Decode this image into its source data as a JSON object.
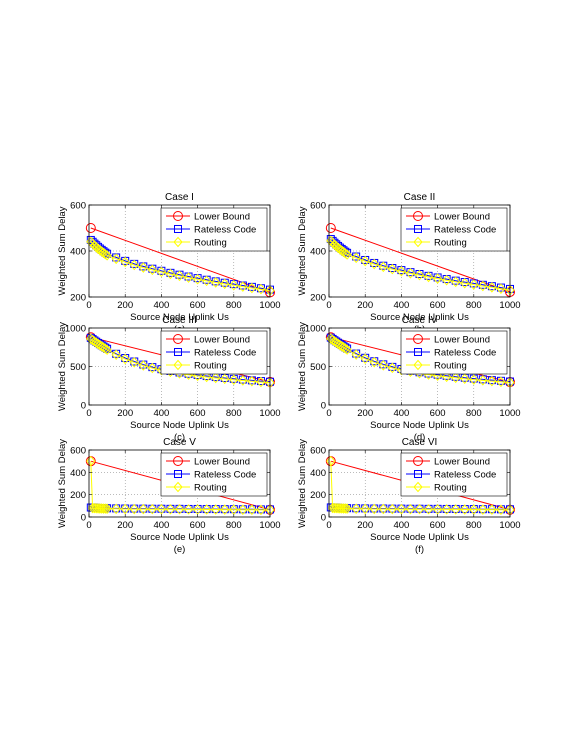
{
  "chart_data": [
    {
      "type": "line",
      "title": "Case I",
      "xlabel": "Source Node Uplink Us",
      "ylabel": "Weighted Sum Delay",
      "caption": "(a)",
      "xlim": [
        0,
        1000
      ],
      "ylim": [
        200,
        600
      ],
      "xticks": [
        0,
        200,
        400,
        600,
        800,
        1000
      ],
      "yticks": [
        200,
        400,
        600
      ],
      "grid": true,
      "legend_position": "top-right",
      "x": [
        10,
        20,
        30,
        40,
        50,
        60,
        70,
        80,
        90,
        100,
        150,
        200,
        250,
        300,
        350,
        400,
        450,
        500,
        550,
        600,
        650,
        700,
        750,
        800,
        850,
        900,
        950,
        1000
      ],
      "series": [
        {
          "name": "Lower Bound",
          "color": "#ff0000",
          "marker": "circle",
          "x": [
            10,
            1000
          ],
          "values": [
            500,
            220
          ]
        },
        {
          "name": "Rateless Code",
          "color": "#0000ff",
          "marker": "square",
          "values": [
            448,
            440,
            432,
            425,
            418,
            411,
            405,
            399,
            393,
            388,
            372,
            357,
            344,
            333,
            323,
            314,
            305,
            297,
            289,
            282,
            275,
            268,
            262,
            256,
            250,
            244,
            238,
            232
          ]
        },
        {
          "name": "Routing",
          "color": "#ffff00",
          "marker": "diamond",
          "values": [
            440,
            432,
            424,
            417,
            410,
            404,
            398,
            392,
            386,
            381,
            366,
            352,
            339,
            328,
            318,
            309,
            300,
            292,
            284,
            277,
            270,
            263,
            257,
            251,
            245,
            239,
            234,
            228
          ]
        }
      ]
    },
    {
      "type": "line",
      "title": "Case II",
      "xlabel": "Source Node Uplink Us",
      "ylabel": "Weighted Sum Delay",
      "caption": "(b)",
      "xlim": [
        0,
        1000
      ],
      "ylim": [
        200,
        600
      ],
      "xticks": [
        0,
        200,
        400,
        600,
        800,
        1000
      ],
      "yticks": [
        200,
        400,
        600
      ],
      "grid": true,
      "legend_position": "top-right",
      "x": [
        10,
        20,
        30,
        40,
        50,
        60,
        70,
        80,
        90,
        100,
        150,
        200,
        250,
        300,
        350,
        400,
        450,
        500,
        550,
        600,
        650,
        700,
        750,
        800,
        850,
        900,
        950,
        1000
      ],
      "series": [
        {
          "name": "Lower Bound",
          "color": "#ff0000",
          "marker": "circle",
          "x": [
            10,
            1000
          ],
          "values": [
            500,
            222
          ]
        },
        {
          "name": "Rateless Code",
          "color": "#0000ff",
          "marker": "square",
          "values": [
            452,
            444,
            436,
            429,
            422,
            415,
            409,
            403,
            397,
            392,
            376,
            361,
            348,
            336,
            326,
            317,
            308,
            300,
            292,
            285,
            278,
            271,
            265,
            259,
            253,
            247,
            241,
            235
          ]
        },
        {
          "name": "Routing",
          "color": "#ffff00",
          "marker": "diamond",
          "values": [
            444,
            436,
            428,
            421,
            414,
            408,
            402,
            396,
            390,
            385,
            370,
            356,
            343,
            331,
            321,
            312,
            303,
            295,
            287,
            280,
            273,
            266,
            260,
            254,
            248,
            242,
            236,
            230
          ]
        }
      ]
    },
    {
      "type": "line",
      "title": "Case III",
      "xlabel": "Source Node Uplink Us",
      "ylabel": "Weighted Sum Delay",
      "caption": "(c)",
      "xlim": [
        0,
        1000
      ],
      "ylim": [
        0,
        1000
      ],
      "xticks": [
        0,
        200,
        400,
        600,
        800,
        1000
      ],
      "yticks": [
        0,
        500,
        1000
      ],
      "grid": true,
      "legend_position": "top-right",
      "x": [
        10,
        20,
        30,
        40,
        50,
        60,
        70,
        80,
        90,
        100,
        150,
        200,
        250,
        300,
        350,
        400,
        450,
        500,
        550,
        600,
        650,
        700,
        750,
        800,
        850,
        900,
        950,
        1000
      ],
      "series": [
        {
          "name": "Lower Bound",
          "color": "#ff0000",
          "marker": "circle",
          "x": [
            10,
            1000
          ],
          "values": [
            880,
            300
          ]
        },
        {
          "name": "Rateless Code",
          "color": "#0000ff",
          "marker": "square",
          "values": [
            872,
            855,
            838,
            822,
            806,
            790,
            775,
            760,
            745,
            730,
            665,
            610,
            565,
            525,
            492,
            465,
            442,
            422,
            405,
            390,
            376,
            363,
            351,
            340,
            330,
            320,
            311,
            302
          ]
        },
        {
          "name": "Routing",
          "color": "#ffff00",
          "marker": "diamond",
          "values": [
            860,
            843,
            826,
            810,
            794,
            778,
            763,
            748,
            733,
            718,
            653,
            598,
            553,
            513,
            480,
            453,
            430,
            410,
            393,
            378,
            364,
            351,
            339,
            328,
            318,
            308,
            299,
            290
          ]
        }
      ]
    },
    {
      "type": "line",
      "title": "Case IV",
      "xlabel": "Source Node Uplink Us",
      "ylabel": "Weighted Sum Delay",
      "caption": "(d)",
      "xlim": [
        0,
        1000
      ],
      "ylim": [
        0,
        1000
      ],
      "xticks": [
        0,
        200,
        400,
        600,
        800,
        1000
      ],
      "yticks": [
        0,
        500,
        1000
      ],
      "grid": true,
      "legend_position": "top-right",
      "x": [
        10,
        20,
        30,
        40,
        50,
        60,
        70,
        80,
        90,
        100,
        150,
        200,
        250,
        300,
        350,
        400,
        450,
        500,
        550,
        600,
        650,
        700,
        750,
        800,
        850,
        900,
        950,
        1000
      ],
      "series": [
        {
          "name": "Lower Bound",
          "color": "#ff0000",
          "marker": "circle",
          "x": [
            10,
            1000
          ],
          "values": [
            880,
            298
          ]
        },
        {
          "name": "Rateless Code",
          "color": "#0000ff",
          "marker": "square",
          "values": [
            875,
            858,
            841,
            825,
            809,
            793,
            778,
            763,
            748,
            733,
            668,
            613,
            568,
            528,
            495,
            468,
            445,
            425,
            408,
            393,
            379,
            366,
            354,
            343,
            333,
            323,
            314,
            305
          ]
        },
        {
          "name": "Routing",
          "color": "#ffff00",
          "marker": "diamond",
          "values": [
            862,
            845,
            828,
            812,
            796,
            780,
            765,
            750,
            735,
            720,
            655,
            600,
            555,
            515,
            482,
            455,
            432,
            412,
            395,
            380,
            366,
            353,
            341,
            330,
            320,
            310,
            301,
            292
          ]
        }
      ]
    },
    {
      "type": "line",
      "title": "Case V",
      "xlabel": "Source Node Uplink Us",
      "ylabel": "Weighted Sum Delay",
      "caption": "(e)",
      "xlim": [
        0,
        1000
      ],
      "ylim": [
        0,
        600
      ],
      "xticks": [
        0,
        200,
        400,
        600,
        800,
        1000
      ],
      "yticks": [
        0,
        200,
        400,
        600
      ],
      "grid": true,
      "legend_position": "top-right",
      "x": [
        10,
        20,
        30,
        40,
        50,
        60,
        70,
        80,
        90,
        100,
        150,
        200,
        250,
        300,
        350,
        400,
        450,
        500,
        550,
        600,
        650,
        700,
        750,
        800,
        850,
        900,
        950,
        1000
      ],
      "series": [
        {
          "name": "Lower Bound",
          "color": "#ff0000",
          "marker": "circle",
          "x": [
            10,
            1000
          ],
          "values": [
            500,
            65
          ]
        },
        {
          "name": "Rateless Code",
          "color": "#0000ff",
          "marker": "square",
          "values": [
            85,
            84,
            83,
            82,
            81,
            80,
            80,
            79,
            79,
            78,
            77,
            76,
            75,
            75,
            74,
            74,
            73,
            73,
            72,
            72,
            71,
            71,
            70,
            70,
            69,
            69,
            68,
            68
          ]
        },
        {
          "name": "Routing",
          "color": "#ffff00",
          "marker": "diamond",
          "values": [
            500,
            80,
            79,
            78,
            77,
            76,
            76,
            75,
            75,
            74,
            73,
            72,
            71,
            71,
            70,
            70,
            69,
            69,
            68,
            68,
            67,
            67,
            66,
            66,
            65,
            65,
            64,
            64
          ]
        }
      ]
    },
    {
      "type": "line",
      "title": "Case VI",
      "xlabel": "Source Node Uplink Us",
      "ylabel": "Weighted Sum Delay",
      "caption": "(f)",
      "xlim": [
        0,
        1000
      ],
      "ylim": [
        0,
        600
      ],
      "xticks": [
        0,
        200,
        400,
        600,
        800,
        1000
      ],
      "yticks": [
        0,
        200,
        400,
        600
      ],
      "grid": true,
      "legend_position": "top-right",
      "x": [
        10,
        20,
        30,
        40,
        50,
        60,
        70,
        80,
        90,
        100,
        150,
        200,
        250,
        300,
        350,
        400,
        450,
        500,
        550,
        600,
        650,
        700,
        750,
        800,
        850,
        900,
        950,
        1000
      ],
      "series": [
        {
          "name": "Lower Bound",
          "color": "#ff0000",
          "marker": "circle",
          "x": [
            10,
            1000
          ],
          "values": [
            500,
            65
          ]
        },
        {
          "name": "Rateless Code",
          "color": "#0000ff",
          "marker": "square",
          "values": [
            86,
            85,
            84,
            83,
            82,
            81,
            81,
            80,
            80,
            79,
            78,
            77,
            76,
            76,
            75,
            75,
            74,
            74,
            73,
            73,
            72,
            72,
            71,
            71,
            70,
            70,
            69,
            69
          ]
        },
        {
          "name": "Routing",
          "color": "#ffff00",
          "marker": "diamond",
          "values": [
            500,
            81,
            80,
            79,
            78,
            77,
            77,
            76,
            76,
            75,
            74,
            73,
            72,
            72,
            71,
            71,
            70,
            70,
            69,
            69,
            68,
            68,
            67,
            67,
            66,
            66,
            65,
            65
          ]
        }
      ]
    }
  ]
}
